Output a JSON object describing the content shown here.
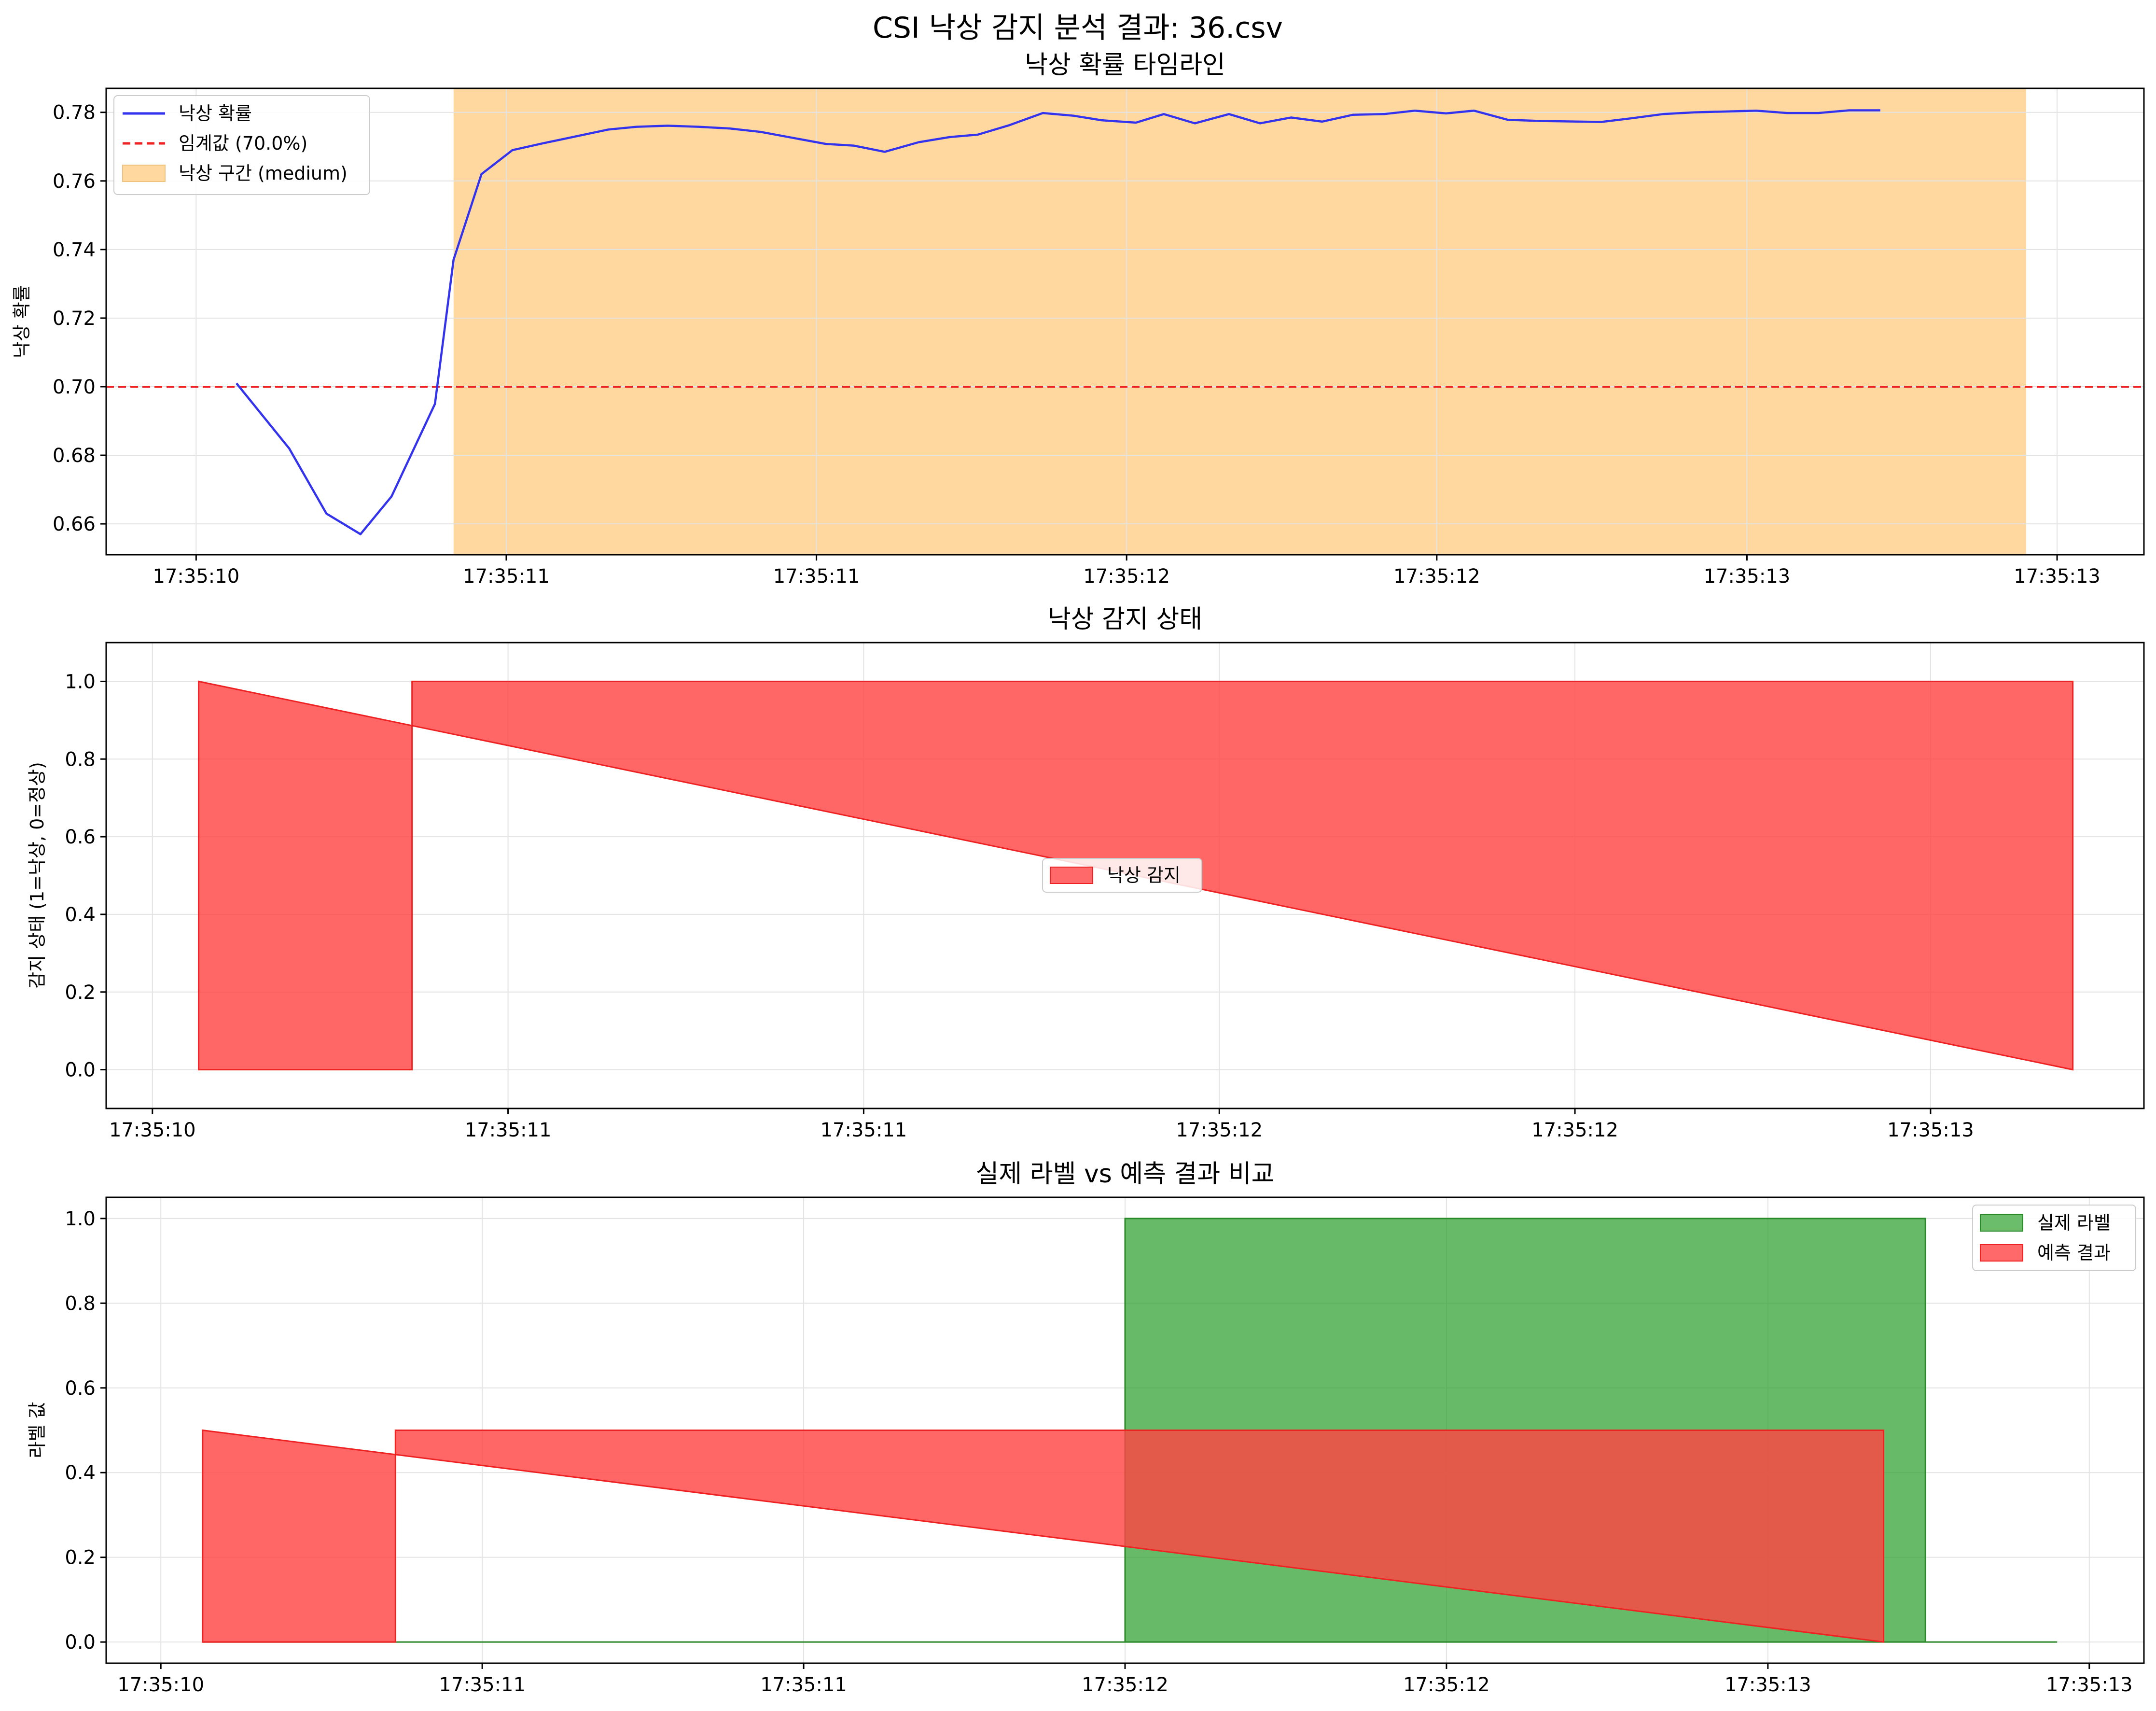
{
  "figure": {
    "suptitle": "CSI 낙상 감지 분석 결과: 36.csv"
  },
  "x_tick_labels_top": [
    "17:35:10",
    "17:35:11",
    "17:35:11",
    "17:35:12",
    "17:35:12",
    "17:35:13",
    "17:35:13"
  ],
  "x_tick_labels_mid": [
    "17:35:10",
    "17:35:11",
    "17:35:11",
    "17:35:12",
    "17:35:12",
    "17:35:13"
  ],
  "x_tick_labels_bot": [
    "17:35:10",
    "17:35:11",
    "17:35:11",
    "17:35:12",
    "17:35:12",
    "17:35:13",
    "17:35:13"
  ],
  "chart_data": [
    {
      "type": "line",
      "title": "낙상 확률 타임라인",
      "xlabel": "",
      "ylabel": "낙상 확률",
      "ylim": [
        0.651,
        0.787
      ],
      "yticks": [
        0.66,
        0.68,
        0.7,
        0.72,
        0.74,
        0.76,
        0.78
      ],
      "ytick_labels": [
        "0.66",
        "0.68",
        "0.70",
        "0.72",
        "0.74",
        "0.76",
        "0.78"
      ],
      "grid": true,
      "legend_position": "upper-left",
      "x_unit": "seconds after 17:35:10",
      "xlim": [
        -0.29,
        6.28
      ],
      "xticks": [
        0,
        1,
        2,
        3,
        4,
        5,
        6
      ],
      "series": [
        {
          "name": "낙상 확률",
          "color": "#3333ee",
          "x": [
            0.13,
            0.3,
            0.42,
            0.53,
            0.63,
            0.77,
            0.83,
            0.92,
            1.02,
            1.12,
            1.33,
            1.42,
            1.52,
            1.62,
            1.72,
            1.82,
            2.03,
            2.12,
            2.22,
            2.33,
            2.43,
            2.52,
            2.62,
            2.73,
            2.83,
            2.92,
            3.03,
            3.12,
            3.22,
            3.33,
            3.43,
            3.53,
            3.63,
            3.73,
            3.83,
            3.93,
            4.03,
            4.12,
            4.23,
            4.33,
            4.53,
            4.63,
            4.73,
            4.83,
            5.03,
            5.13,
            5.23,
            5.33,
            5.43
          ],
          "y": [
            0.701,
            0.682,
            0.663,
            0.657,
            0.668,
            0.695,
            0.737,
            0.762,
            0.769,
            0.771,
            0.775,
            0.7758,
            0.7761,
            0.7758,
            0.7753,
            0.7743,
            0.7708,
            0.7703,
            0.7685,
            0.7713,
            0.7728,
            0.7735,
            0.7762,
            0.7798,
            0.779,
            0.7777,
            0.777,
            0.7795,
            0.7768,
            0.7795,
            0.7768,
            0.7785,
            0.7773,
            0.7793,
            0.7795,
            0.7805,
            0.7797,
            0.7805,
            0.7778,
            0.7775,
            0.7772,
            0.7783,
            0.7795,
            0.78,
            0.7805,
            0.7798,
            0.7798,
            0.7806,
            0.7806
          ]
        },
        {
          "name": "임계값 (70.0%)",
          "color": "#ee2222",
          "style": "dashed",
          "value": 0.7
        },
        {
          "name": "낙상 구간 (medium)",
          "color": "#ffd8a0",
          "type": "span",
          "x_start": 0.83,
          "x_end": 5.9
        }
      ]
    },
    {
      "type": "area",
      "title": "낙상 감지 상태",
      "xlabel": "",
      "ylabel": "감지 상태 (1=낙상, 0=정상)",
      "ylim": [
        -0.1,
        1.1
      ],
      "yticks": [
        0.0,
        0.2,
        0.4,
        0.6,
        0.8,
        1.0
      ],
      "ytick_labels": [
        "0.0",
        "0.2",
        "0.4",
        "0.6",
        "0.8",
        "1.0"
      ],
      "grid": true,
      "legend_position": "center",
      "x_unit": "seconds after 17:35:10",
      "xlim": [
        -0.13,
        5.6
      ],
      "xticks": [
        0,
        1,
        2,
        3,
        4,
        5
      ],
      "series": [
        {
          "name": "낙상 감지",
          "color": "#ff4444",
          "x": [
            0.13,
            0.13,
            0.73,
            0.73,
            5.4,
            5.4
          ],
          "y": [
            1,
            0,
            0,
            1,
            1,
            0
          ]
        }
      ]
    },
    {
      "type": "area",
      "title": "실제 라벨 vs 예측 결과 비교",
      "xlabel": "",
      "ylabel": "라벨 값",
      "ylim": [
        -0.05,
        1.05
      ],
      "yticks": [
        0.0,
        0.2,
        0.4,
        0.6,
        0.8,
        1.0
      ],
      "ytick_labels": [
        "0.0",
        "0.2",
        "0.4",
        "0.6",
        "0.8",
        "1.0"
      ],
      "grid": true,
      "legend_position": "upper-right",
      "x_unit": "seconds after 17:35:10",
      "xlim": [
        -0.17,
        6.17
      ],
      "xticks": [
        0,
        1,
        2,
        3,
        4,
        5,
        6
      ],
      "series": [
        {
          "name": "실제 라벨",
          "color": "#2ca02c",
          "x": [
            0.13,
            3.0,
            3.0,
            5.49,
            5.49,
            5.9
          ],
          "y": [
            0,
            0,
            1,
            1,
            0,
            0
          ]
        },
        {
          "name": "예측 결과",
          "color": "#ff4444",
          "x": [
            0.13,
            0.13,
            0.73,
            0.73,
            5.36,
            5.36
          ],
          "y": [
            0.5,
            0,
            0,
            0.5,
            0.5,
            0
          ]
        }
      ]
    }
  ]
}
